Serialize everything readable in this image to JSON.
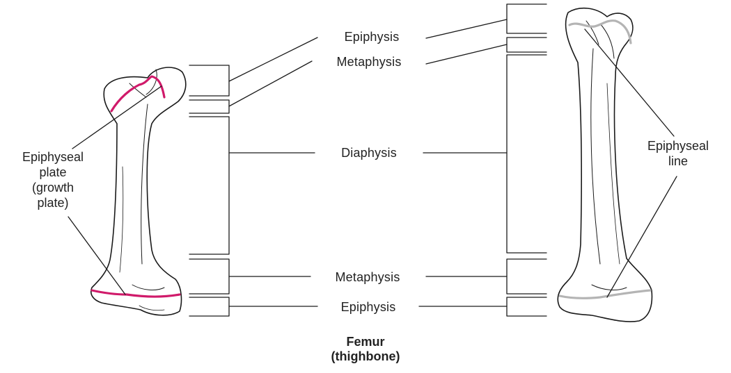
{
  "labels": {
    "epiphysis_top": "Epiphysis",
    "metaphysis_top": "Metaphysis",
    "diaphysis": "Diaphysis",
    "metaphysis_bottom": "Metaphysis",
    "epiphysis_bottom": "Epiphysis",
    "plate_line1": "Epiphyseal",
    "plate_line2": "plate",
    "plate_line3": "(growth",
    "plate_line4": "plate)",
    "line_line1": "Epiphyseal",
    "line_line2": "line"
  },
  "caption": {
    "title": "Femur",
    "subtitle": "(thighbone)"
  },
  "colors": {
    "growth_plate": "#d01a6a",
    "epiphyseal_line": "#b4b4b4",
    "outline": "#1a1a1a"
  }
}
